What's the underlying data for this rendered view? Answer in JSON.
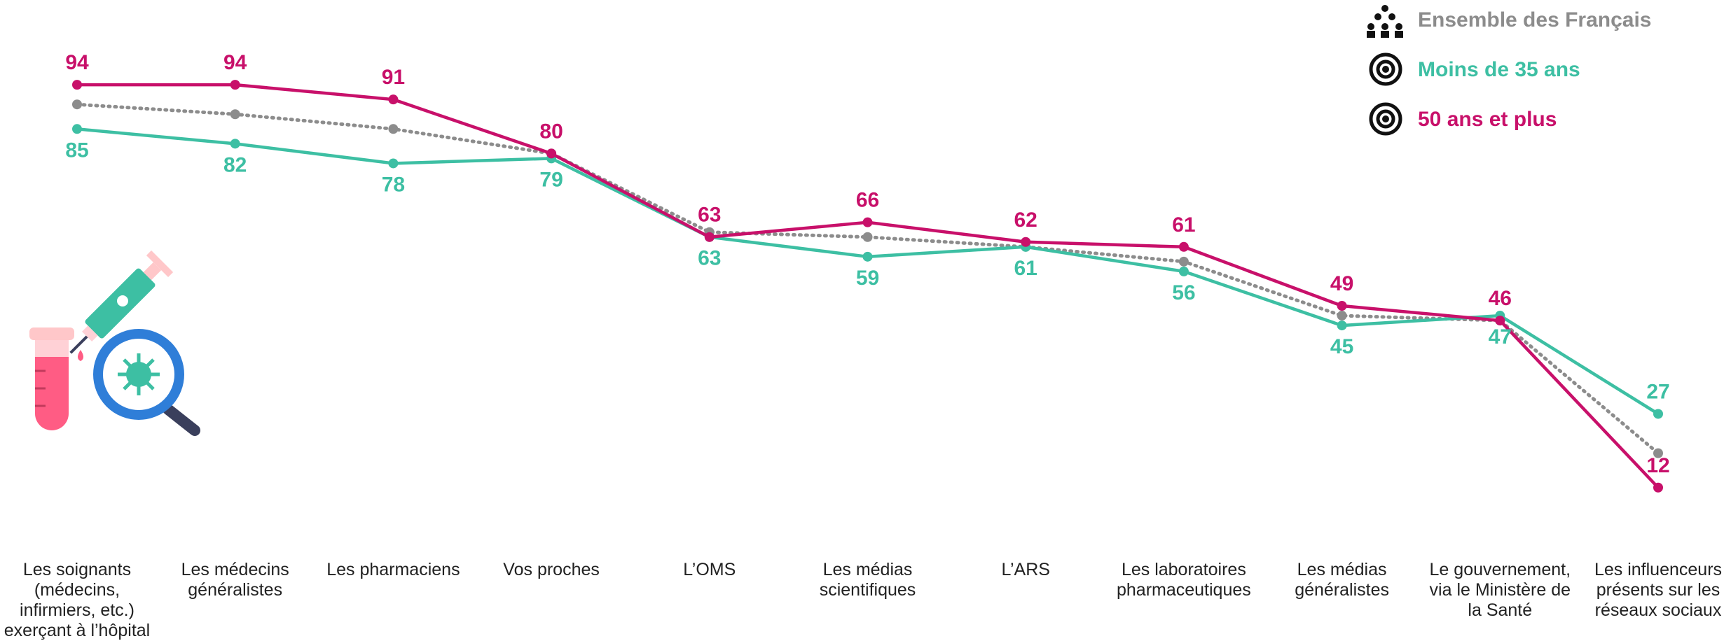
{
  "chart_data": {
    "type": "line",
    "categories": [
      "Les soignants (médecins, infirmiers, etc.) exerçant à l’hôpital",
      "Les médecins généralistes",
      "Les pharmaciens",
      "Vos proches",
      "L’OMS",
      "Les médias scientifiques",
      "L’ARS",
      "Les laboratoires pharmaceutiques",
      "Les médias généralistes",
      "Le gouvernement, via le Ministère de la Santé",
      "Les influenceurs présents sur les réseaux sociaux"
    ],
    "series": [
      {
        "name": "Ensemble des Français",
        "color": "#8c8c8c",
        "dashed": true,
        "values": [
          90,
          88,
          85,
          80,
          64,
          63,
          61,
          58,
          47,
          46,
          19
        ]
      },
      {
        "name": "Moins de 35 ans",
        "color": "#3dbfa3",
        "values": [
          85,
          82,
          78,
          79,
          63,
          59,
          61,
          56,
          45,
          47,
          27
        ],
        "labels": true
      },
      {
        "name": "50 ans et plus",
        "color": "#c8106a",
        "values": [
          94,
          94,
          91,
          80,
          63,
          66,
          62,
          61,
          49,
          46,
          12
        ],
        "labels": true
      }
    ],
    "ylim": [
      0,
      100
    ]
  }
}
